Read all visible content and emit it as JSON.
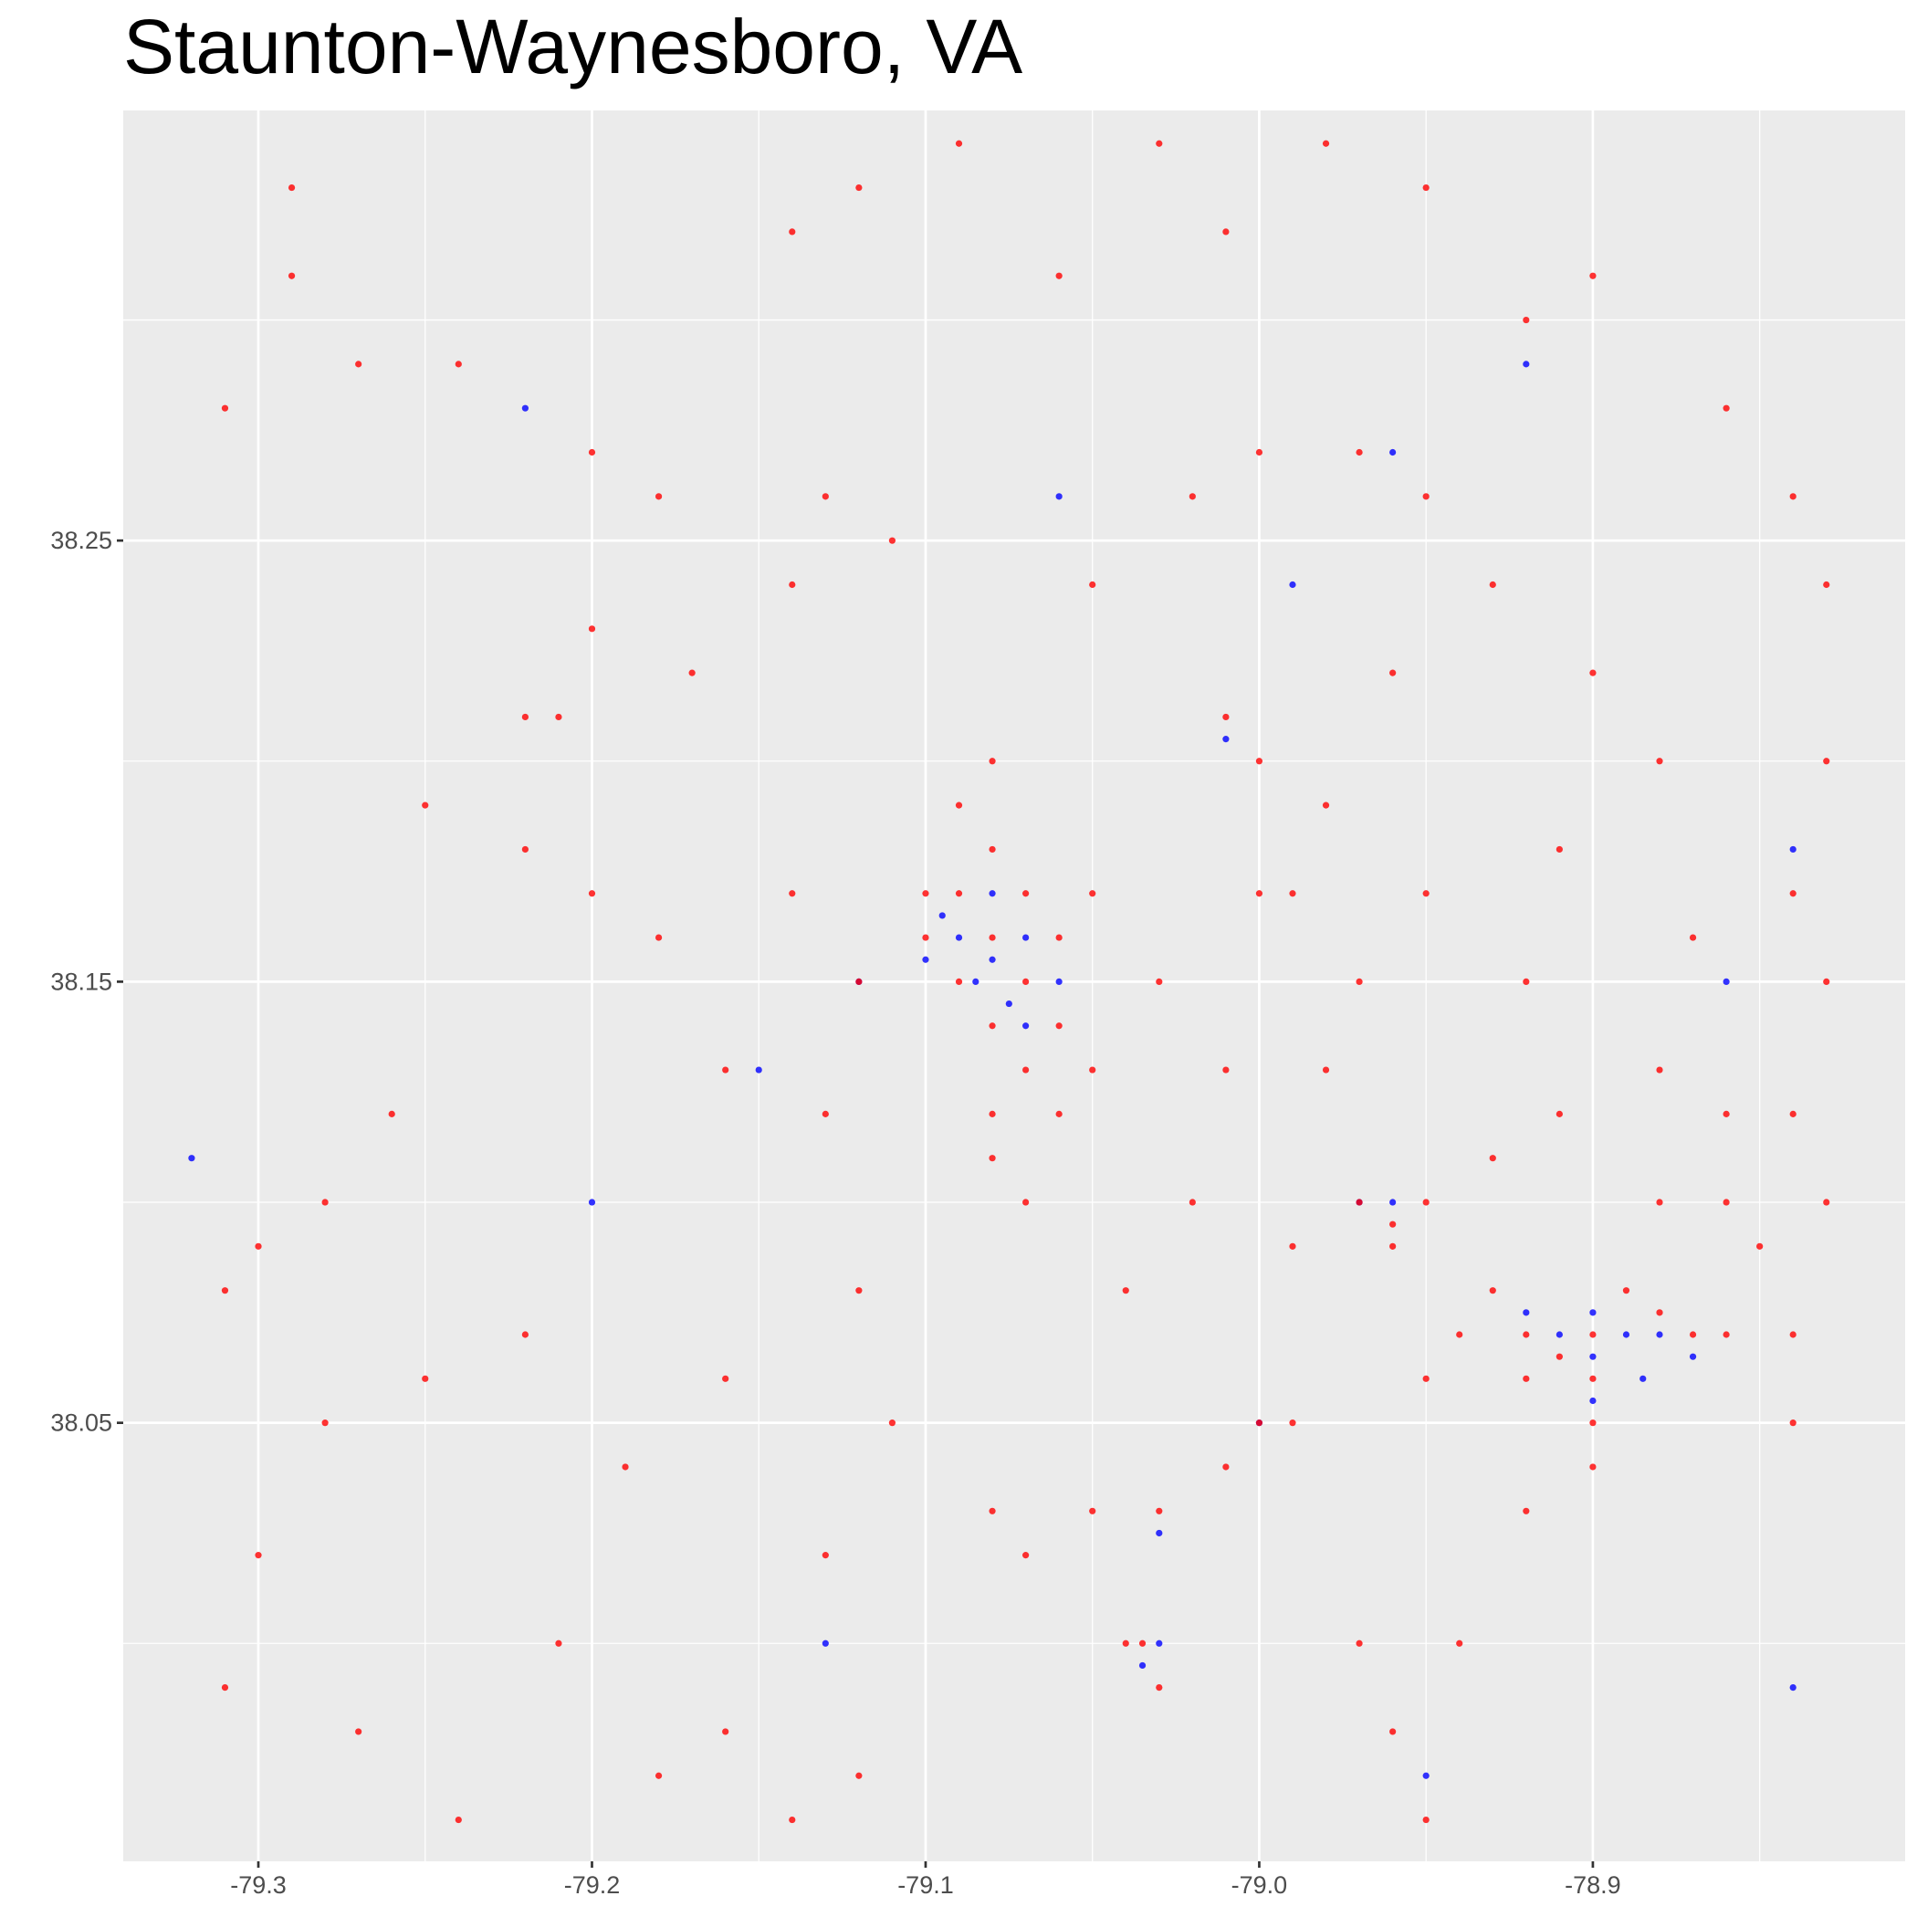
{
  "chart_data": {
    "type": "scatter",
    "title": "Staunton-Waynesboro, VA",
    "xlim": [
      -79.3405,
      -78.8064
    ],
    "ylim": [
      37.9506,
      38.3475
    ],
    "xticks": [
      -79.3,
      -79.2,
      -79.1,
      {
        "value": -79,
        "label": "-79.0"
      },
      -78.9
    ],
    "yticks": [
      38.05,
      38.15,
      38.25
    ],
    "xminor": [
      -79.25,
      -79.15,
      -79.05,
      -78.95,
      -78.85
    ],
    "yminor": [
      38,
      38.1,
      38.2,
      38.3
    ],
    "grid": true,
    "series": [
      {
        "color": "#0000ff",
        "x": [
          -79.09,
          -79.08,
          -79.07,
          -79.085,
          -79.075,
          -79.1,
          -79.06,
          -79.07,
          -79.095,
          -79.08,
          -79.12,
          -78.91,
          -78.9,
          -78.89,
          -78.88,
          -78.87,
          -78.9,
          -78.92,
          -78.9,
          -78.885,
          -79.035,
          -79.03,
          -79.03,
          -78.97,
          -78.96,
          -79.0,
          -79.01,
          -78.92,
          -78.96,
          -79.15,
          -79.22,
          -79.32,
          -78.84,
          -78.95,
          -79.13,
          -79.2,
          -78.86,
          -78.99,
          -79.06,
          -78.84
        ],
        "y": [
          38.16,
          38.155,
          38.16,
          38.15,
          38.145,
          38.155,
          38.15,
          38.14,
          38.165,
          38.17,
          38.15,
          38.07,
          38.065,
          38.07,
          38.07,
          38.065,
          38.075,
          38.075,
          38.055,
          38.06,
          37.995,
          38.0,
          38.025,
          38.1,
          38.1,
          38.05,
          38.205,
          38.29,
          38.27,
          38.13,
          38.28,
          38.11,
          37.99,
          37.97,
          38.0,
          38.1,
          38.15,
          38.24,
          38.26,
          38.18
        ]
      },
      {
        "color": "#ff0000",
        "x": [
          -79.29,
          -79.29,
          -79.31,
          -79.24,
          -79.27,
          -79.2,
          -79.18,
          -79.14,
          -79.12,
          -79.09,
          -79.06,
          -79.03,
          -79.01,
          -78.98,
          -78.95,
          -78.92,
          -78.9,
          -78.86,
          -78.84,
          -78.83,
          -78.83,
          -78.84,
          -78.83,
          -78.84,
          -78.83,
          -78.84,
          -79.21,
          -79.22,
          -79.2,
          -79.17,
          -79.13,
          -79.14,
          -79.11,
          -79.09,
          -79.08,
          -79.05,
          -79.02,
          -79.0,
          -78.97,
          -78.95,
          -78.96,
          -78.93,
          -78.9,
          -78.88,
          -78.91,
          -78.87,
          -78.92,
          -78.95,
          -78.99,
          -79.01,
          -79.0,
          -78.98,
          -79.1,
          -79.09,
          -79.08,
          -79.07,
          -79.06,
          -79.05,
          -79.08,
          -79.07,
          -79.08,
          -79.06,
          -79.1,
          -79.09,
          -79.07,
          -79.05,
          -79.08,
          -79.06,
          -79.08,
          -79.07,
          -79.12,
          -79.14,
          -79.13,
          -79.16,
          -79.18,
          -79.2,
          -79.22,
          -79.25,
          -79.26,
          -79.28,
          -79.3,
          -79.31,
          -79.28,
          -79.3,
          -79.31,
          -79.27,
          -79.24,
          -79.21,
          -79.18,
          -79.16,
          -79.14,
          -79.12,
          -79.13,
          -79.11,
          -79.12,
          -79.16,
          -79.19,
          -79.22,
          -79.25,
          -79.08,
          -79.07,
          -79.05,
          -79.04,
          -79.03,
          -79.035,
          -79.03,
          -79.01,
          -79.0,
          -78.99,
          -78.97,
          -78.96,
          -78.94,
          -78.92,
          -78.9,
          -78.95,
          -78.97,
          -78.96,
          -78.95,
          -78.96,
          -78.99,
          -79.02,
          -79.04,
          -78.93,
          -78.92,
          -78.91,
          -78.9,
          -78.89,
          -78.88,
          -78.92,
          -78.9,
          -78.94,
          -78.95,
          -78.86,
          -78.87,
          -78.9,
          -78.88,
          -78.86,
          -78.84,
          -78.85,
          -78.86,
          -78.88,
          -78.91,
          -78.93,
          -78.98,
          -79.01,
          -79.03,
          -79.0,
          -78.97
        ],
        "y": [
          38.33,
          38.31,
          38.28,
          38.29,
          38.29,
          38.27,
          38.26,
          38.32,
          38.33,
          38.34,
          38.31,
          38.34,
          38.32,
          38.34,
          38.33,
          38.3,
          38.31,
          38.28,
          38.26,
          38.24,
          38.2,
          38.17,
          38.15,
          38.12,
          38.1,
          38.07,
          38.21,
          38.21,
          38.23,
          38.22,
          38.26,
          38.24,
          38.25,
          38.19,
          38.2,
          38.24,
          38.26,
          38.27,
          38.27,
          38.26,
          38.22,
          38.24,
          38.22,
          38.2,
          38.18,
          38.16,
          38.15,
          38.17,
          38.17,
          38.21,
          38.2,
          38.19,
          38.17,
          38.17,
          38.18,
          38.17,
          38.16,
          38.17,
          38.16,
          38.15,
          38.14,
          38.14,
          38.16,
          38.15,
          38.13,
          38.13,
          38.12,
          38.12,
          38.11,
          38.1,
          38.15,
          38.17,
          38.12,
          38.13,
          38.16,
          38.17,
          38.18,
          38.19,
          38.12,
          38.1,
          38.09,
          38.08,
          38.05,
          38.02,
          37.99,
          37.98,
          37.96,
          38.0,
          37.97,
          37.98,
          37.96,
          37.97,
          38.02,
          38.05,
          38.08,
          38.06,
          38.04,
          38.07,
          38.06,
          38.03,
          38.02,
          38.03,
          38.0,
          37.99,
          38.0,
          38.03,
          38.04,
          38.05,
          38.05,
          38.0,
          37.98,
          38.0,
          38.03,
          38.04,
          37.96,
          38.1,
          38.095,
          38.1,
          38.09,
          38.09,
          38.1,
          38.08,
          38.08,
          38.07,
          38.065,
          38.07,
          38.08,
          38.075,
          38.06,
          38.06,
          38.07,
          38.06,
          38.07,
          38.07,
          38.05,
          38.1,
          38.1,
          38.05,
          38.09,
          38.12,
          38.13,
          38.12,
          38.11,
          38.13,
          38.13,
          38.15,
          38.17,
          38.15
        ]
      }
    ]
  }
}
